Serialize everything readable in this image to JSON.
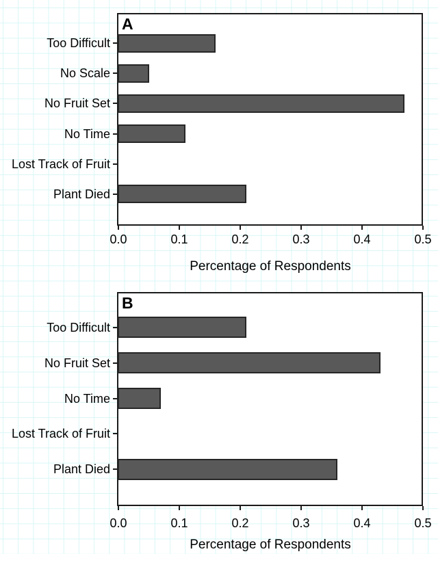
{
  "figure": {
    "xlabel": "Percentage of Respondents",
    "x_tick_labels": [
      "0.0",
      "0.1",
      "0.2",
      "0.3",
      "0.4",
      "0.5"
    ]
  },
  "chart_data": [
    {
      "type": "bar",
      "orientation": "horizontal",
      "panel_label": "A",
      "categories": [
        "Too Difficult",
        "No Scale",
        "No Fruit Set",
        "No Time",
        "Lost Track of Fruit",
        "Plant Died"
      ],
      "values": [
        0.16,
        0.05,
        0.47,
        0.11,
        0.0,
        0.21
      ],
      "xlabel": "Percentage of Respondents",
      "xlim": [
        0,
        0.5
      ],
      "x_ticks": [
        0.0,
        0.1,
        0.2,
        0.3,
        0.4,
        0.5
      ],
      "x_tick_labels": [
        "0.0",
        "0.1",
        "0.2",
        "0.3",
        "0.4",
        "0.5"
      ],
      "grid": false,
      "legend": null
    },
    {
      "type": "bar",
      "orientation": "horizontal",
      "panel_label": "B",
      "categories": [
        "Too Difficult",
        "No Fruit Set",
        "No Time",
        "Lost Track of Fruit",
        "Plant Died"
      ],
      "values": [
        0.21,
        0.43,
        0.07,
        0.0,
        0.36
      ],
      "xlabel": "Percentage of Respondents",
      "xlim": [
        0,
        0.5
      ],
      "x_ticks": [
        0.0,
        0.1,
        0.2,
        0.3,
        0.4,
        0.5
      ],
      "x_tick_labels": [
        "0.0",
        "0.1",
        "0.2",
        "0.3",
        "0.4",
        "0.5"
      ],
      "grid": false,
      "legend": null
    }
  ],
  "colors": {
    "bar_fill": "#595959",
    "bar_border": "#262626",
    "axis": "#1b1b1b",
    "text": "#000000",
    "grid_line": "#d9f6f6",
    "background": "#ffffff"
  }
}
